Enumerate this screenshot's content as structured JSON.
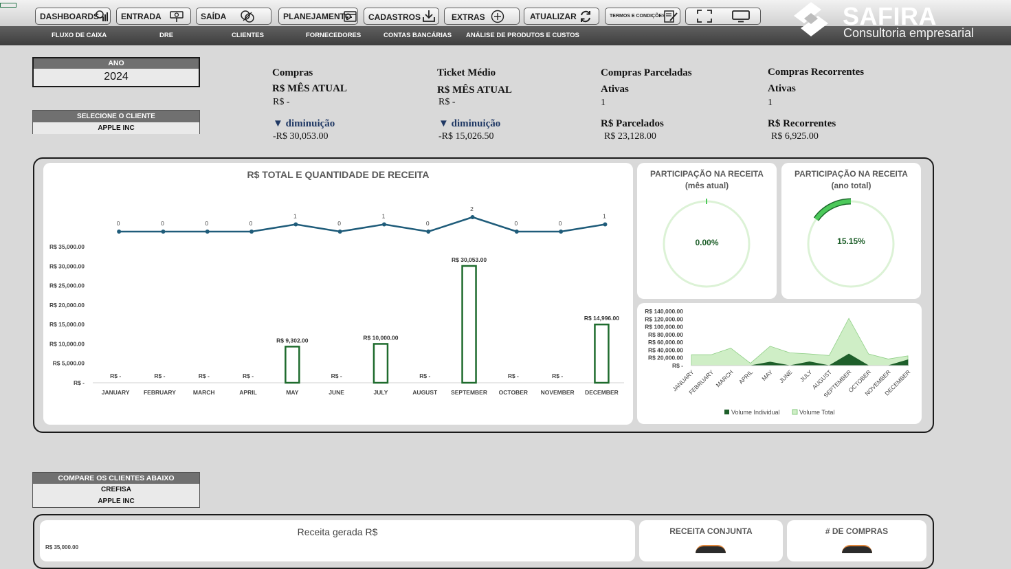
{
  "toolbar": {
    "dashboards": "DASHBOARDS",
    "entrada": "ENTRADA",
    "saida": "SAÍDA",
    "planejamento": "PLANEJAMENTO",
    "cadastros": "CADASTROS",
    "extras": "EXTRAS",
    "atualizar": "ATUALIZAR",
    "termos": "TERMOS E CONDIÇÕES"
  },
  "nav": [
    "FLUXO DE CAIXA",
    "DRE",
    "CLIENTES",
    "FORNECEDORES",
    "CONTAS BANCÁRIAS",
    "ANÁLISE DE PRODUTOS E CUSTOS"
  ],
  "brand": {
    "name": "SAFIRA",
    "tagline": "Consultoria empresarial"
  },
  "filters": {
    "year_label": "ANO",
    "year_value": "2024",
    "client_label": "SELECIONE O CLIENTE",
    "client_value": "APPLE INC",
    "compare_label": "COMPARE OS CLIENTES ABAIXO",
    "compare_a": "CREFISA",
    "compare_b": "APPLE INC"
  },
  "kpis": {
    "compras": {
      "title": "Compras",
      "sub": "R$ MÊS ATUAL",
      "value": "R$ -",
      "delta_label": "▼ diminuição",
      "delta_value": "-R$ 30,053.00"
    },
    "ticket": {
      "title": "Ticket Médio",
      "sub": "R$ MÊS ATUAL",
      "value": "R$ -",
      "delta_label": "▼ diminuição",
      "delta_value": "-R$ 15,026.50"
    },
    "parceladas": {
      "title": "Compras Parceladas",
      "sub": "Ativas",
      "value": "1",
      "money_label": "R$ Parcelados",
      "money_value": "R$ 23,128.00"
    },
    "recorrentes": {
      "title": "Compras Recorrentes",
      "sub": "Ativas",
      "value": "1",
      "money_label": "R$ Recorrentes",
      "money_value": "R$ 6,925.00"
    }
  },
  "colors": {
    "bar": "#1e6b2d",
    "line": "#1f5c7a",
    "ring_bg": "#dcf2d6",
    "ring_fg": "#4cc95a",
    "area_total": "#cfeec6",
    "area_indiv": "#1e5f2a"
  },
  "chart_data": [
    {
      "type": "bar",
      "title": "R$ TOTAL E QUANTIDADE DE RECEITA",
      "categories": [
        "JANUARY",
        "FEBRUARY",
        "MARCH",
        "APRIL",
        "MAY",
        "JUNE",
        "JULY",
        "AUGUST",
        "SEPTEMBER",
        "OCTOBER",
        "NOVEMBER",
        "DECEMBER"
      ],
      "series": [
        {
          "values": [
            0,
            0,
            0,
            0,
            9302,
            0,
            10000,
            0,
            30053,
            0,
            0,
            14996
          ]
        },
        {
          "values": [
            0,
            0,
            0,
            0,
            1,
            0,
            1,
            0,
            2,
            0,
            0,
            1
          ]
        }
      ],
      "bar_labels": [
        "R$ -",
        "R$ -",
        "R$ -",
        "R$ -",
        "R$ 9,302.00",
        "R$ -",
        "R$ 10,000.00",
        "R$ -",
        "R$ 30,053.00",
        "R$ -",
        "R$ -",
        "R$ 14,996.00"
      ],
      "ylim": [
        0,
        35000
      ],
      "yticks": [
        "R$ -",
        "R$ 5,000.00",
        "R$ 10,000.00",
        "R$ 15,000.00",
        "R$ 20,000.00",
        "R$ 25,000.00",
        "R$ 30,000.00",
        "R$ 35,000.00"
      ]
    },
    {
      "type": "pie",
      "title": "PARTICIPAÇÃO NA RECEITA",
      "subtitle": "(mês atual)",
      "value": 0.0,
      "label": "0.00%"
    },
    {
      "type": "pie",
      "title": "PARTICIPAÇÃO NA RECEITA",
      "subtitle": "(ano total)",
      "value": 15.15,
      "label": "15.15%"
    },
    {
      "type": "area",
      "categories": [
        "JANUARY",
        "FEBRUARY",
        "MARCH",
        "APRIL",
        "MAY",
        "JUNE",
        "JULY",
        "AUGUST",
        "SEPTEMBER",
        "OCTOBER",
        "NOVEMBER",
        "DECEMBER"
      ],
      "series": [
        {
          "name": "Volume Individual",
          "values": [
            0,
            0,
            0,
            0,
            9302,
            0,
            10000,
            0,
            30053,
            0,
            0,
            14996
          ]
        },
        {
          "name": "Volume Total",
          "values": [
            28000,
            28000,
            45000,
            6000,
            50000,
            33000,
            30000,
            26000,
            122000,
            30000,
            17000,
            25000
          ]
        }
      ],
      "ylim": [
        0,
        140000
      ],
      "yticks": [
        "R$ -",
        "R$ 20,000.00",
        "R$ 40,000.00",
        "R$ 60,000.00",
        "R$ 80,000.00",
        "R$ 100,000.00",
        "R$ 120,000.00",
        "R$ 140,000.00"
      ],
      "legend": "bottom"
    }
  ],
  "bottom": {
    "receita_title": "Receita gerada R$",
    "receita_tick": "R$ 35,000.00",
    "conjunta_title": "RECEITA CONJUNTA",
    "compras_title": "# DE COMPRAS"
  }
}
